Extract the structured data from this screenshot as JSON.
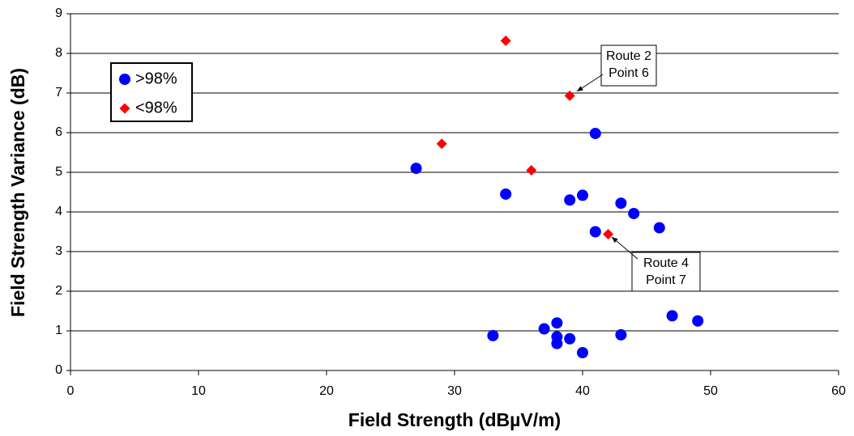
{
  "chart_data": {
    "type": "scatter",
    "xlabel": "Field Strength (dBµV/m)",
    "ylabel": "Field Strength Variance (dB)",
    "xlim": [
      0,
      60
    ],
    "xticks": [
      0,
      10,
      20,
      30,
      40,
      50,
      60
    ],
    "ylim": [
      0,
      9
    ],
    "yticks": [
      0,
      1,
      2,
      3,
      4,
      5,
      6,
      7,
      8,
      9
    ],
    "grid": "y",
    "legend": "upper left",
    "series": [
      {
        "name": ">98%",
        "color": "#0000ff",
        "marker": "circle",
        "x": [
          27,
          34,
          41,
          39,
          40,
          43,
          44,
          46,
          41,
          33,
          37,
          38,
          38,
          38,
          39,
          40,
          43,
          47,
          49
        ],
        "values": [
          5.1,
          4.45,
          5.98,
          4.3,
          4.42,
          4.22,
          3.96,
          3.6,
          3.5,
          0.88,
          1.05,
          1.2,
          0.85,
          0.68,
          0.8,
          0.45,
          0.9,
          1.38,
          1.25
        ]
      },
      {
        "name": "<98%",
        "color": "#ff0000",
        "marker": "diamond",
        "x": [
          34,
          39,
          29,
          36,
          42
        ],
        "values": [
          8.32,
          6.93,
          5.72,
          5.05,
          3.44
        ]
      }
    ],
    "annotations": [
      {
        "lines": [
          "Route 2",
          "Point 6"
        ]
      },
      {
        "lines": [
          "Route 4",
          "Point 7"
        ]
      }
    ]
  }
}
